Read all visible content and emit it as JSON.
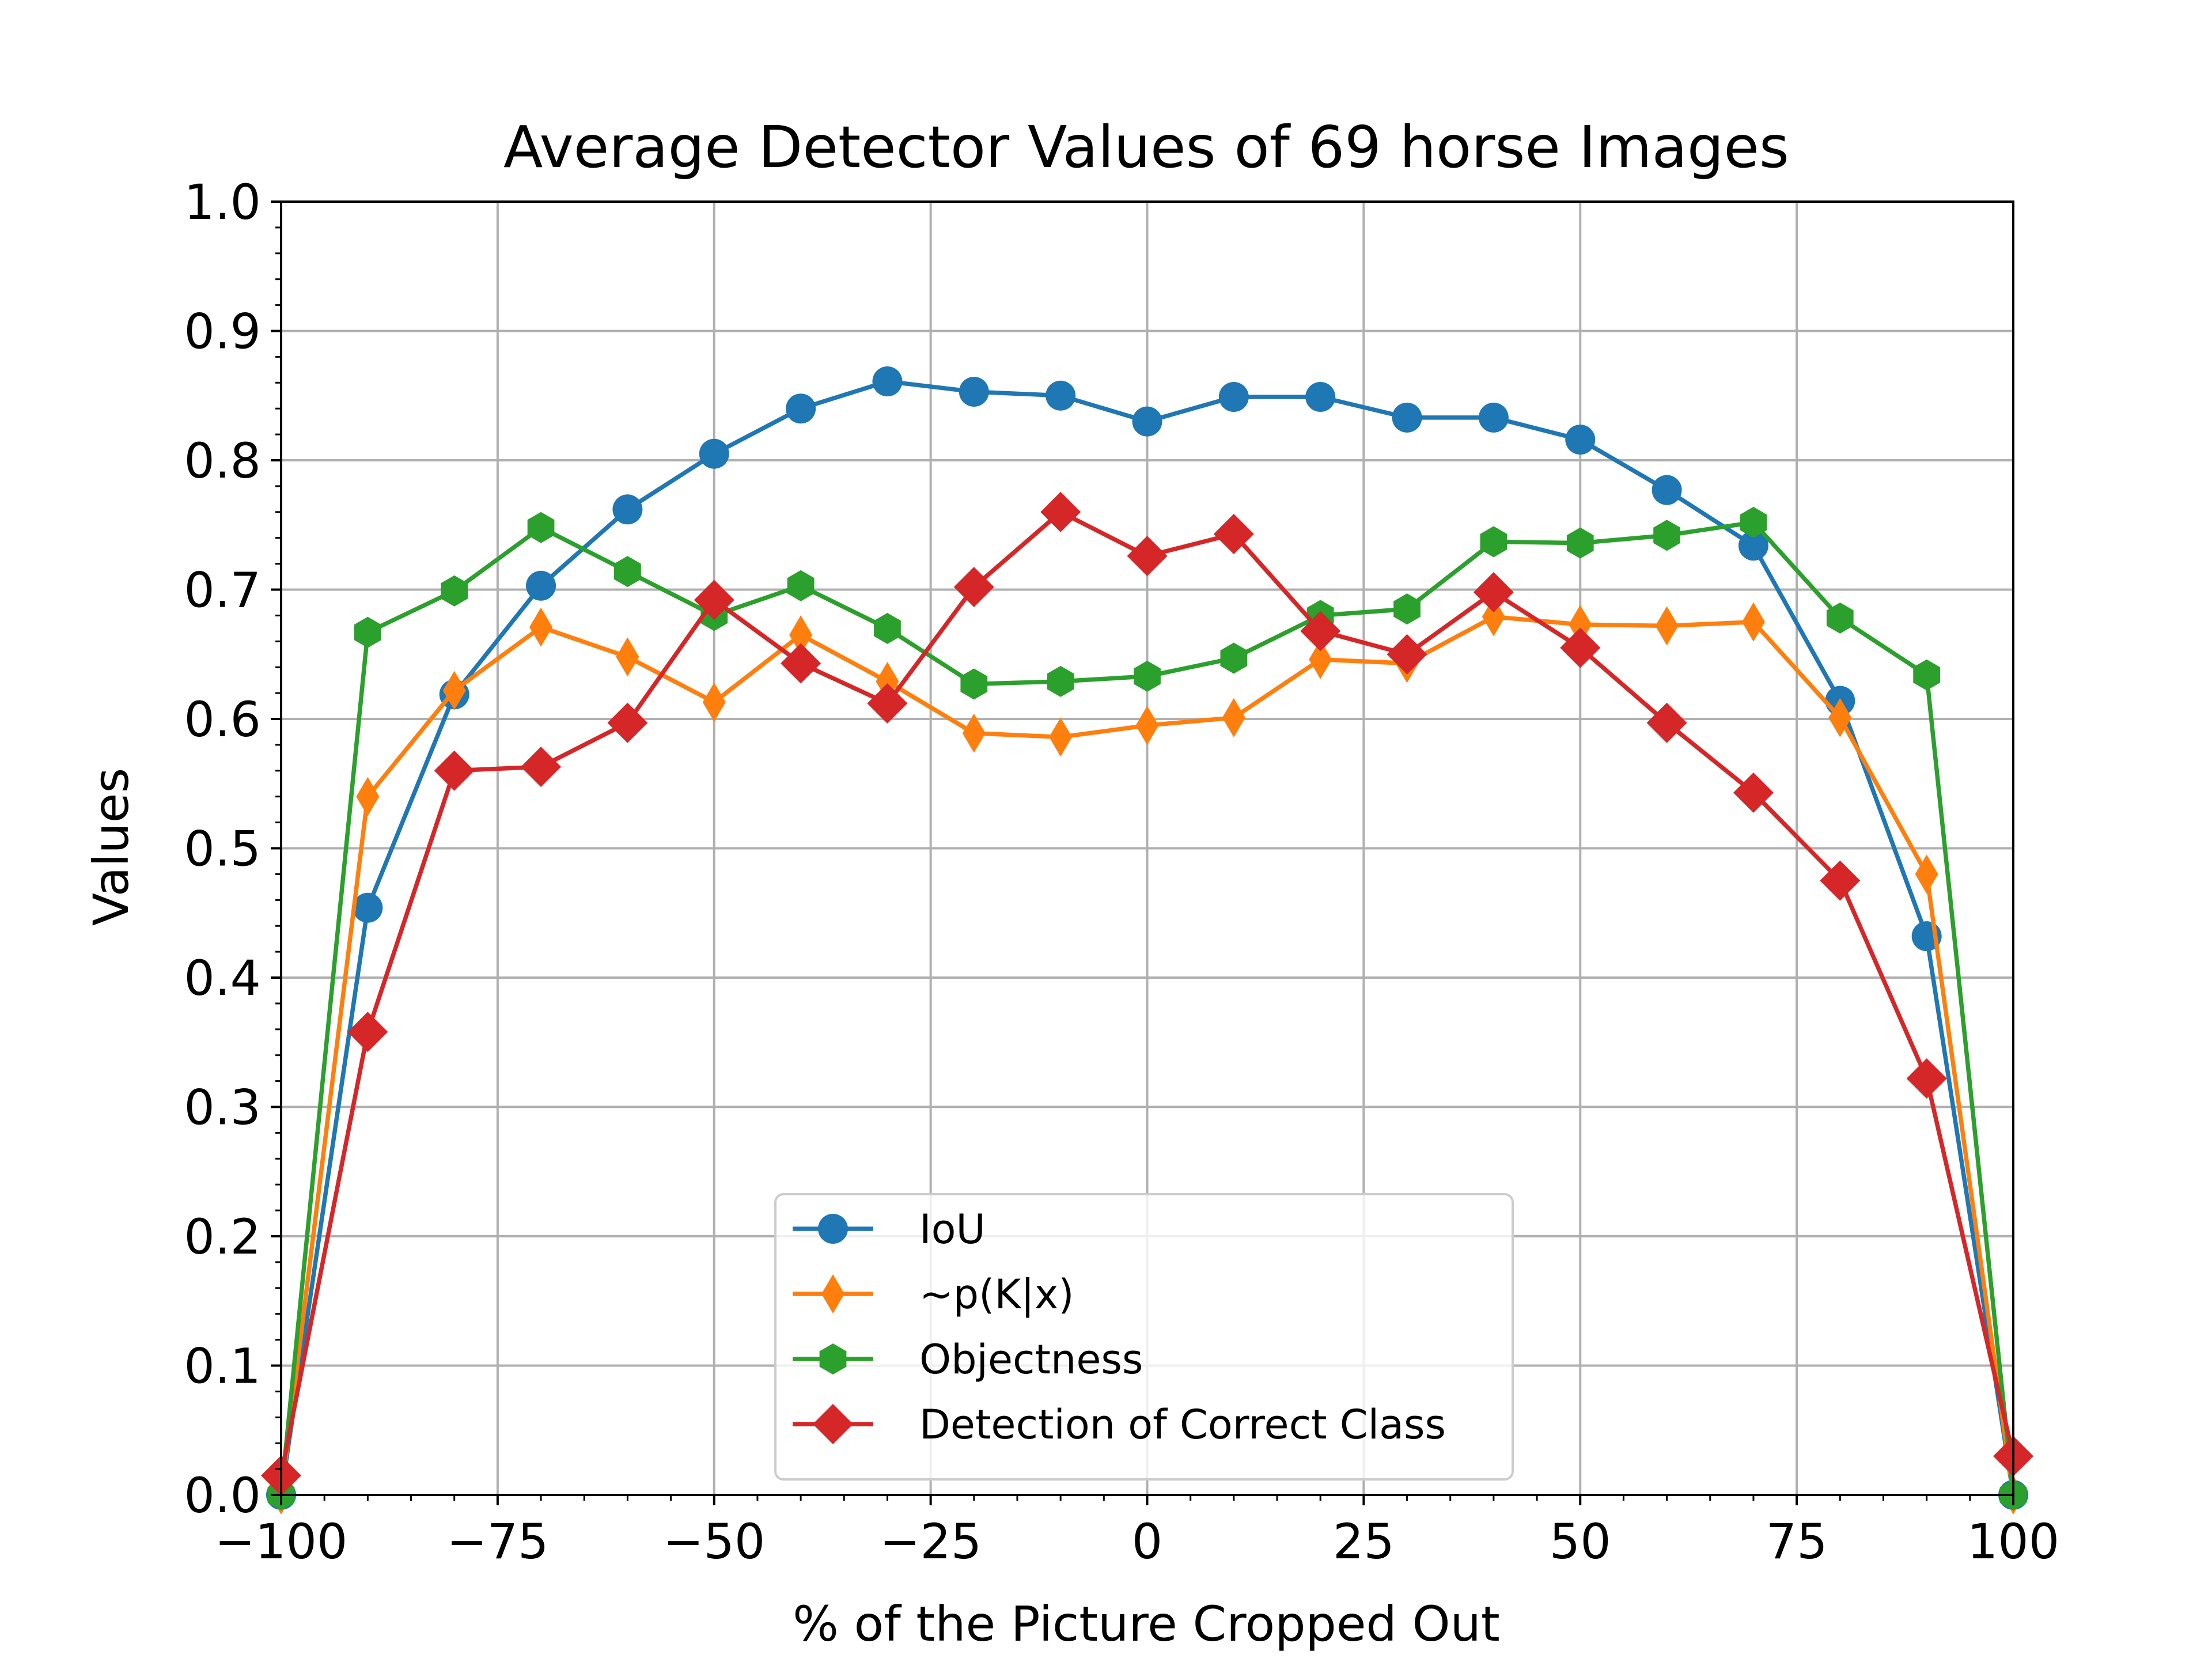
{
  "chart_data": {
    "type": "line",
    "title": "Average Detector Values of 69 horse Images",
    "xlabel": "% of the Picture Cropped Out",
    "ylabel": "Values",
    "xlim": [
      -100,
      100
    ],
    "ylim": [
      0,
      1
    ],
    "grid": true,
    "legend_position": "bottom-center",
    "x_ticks": [
      -100,
      -75,
      -50,
      -25,
      0,
      25,
      50,
      75,
      100
    ],
    "x_tick_labels": [
      "−100",
      "−75",
      "−50",
      "−25",
      "0",
      "25",
      "50",
      "75",
      "100"
    ],
    "y_ticks": [
      0,
      0.1,
      0.2,
      0.3,
      0.4,
      0.5,
      0.6,
      0.7,
      0.8,
      0.9,
      1.0
    ],
    "y_tick_labels": [
      "0.0",
      "0.1",
      "0.2",
      "0.3",
      "0.4",
      "0.5",
      "0.6",
      "0.7",
      "0.8",
      "0.9",
      "1.0"
    ],
    "x": [
      -100,
      -90,
      -80,
      -70,
      -60,
      -50,
      -40,
      -30,
      -20,
      -10,
      0,
      10,
      20,
      30,
      40,
      50,
      60,
      70,
      80,
      90,
      100
    ],
    "series": [
      {
        "name": "IoU",
        "color": "#1f77b4",
        "marker": "circle",
        "values": [
          0.0,
          0.454,
          0.619,
          0.703,
          0.762,
          0.805,
          0.84,
          0.861,
          0.853,
          0.85,
          0.83,
          0.849,
          0.849,
          0.833,
          0.833,
          0.816,
          0.777,
          0.734,
          0.614,
          0.432,
          0.0
        ]
      },
      {
        "name": "~p(K|x)",
        "color": "#ff7f0e",
        "marker": "thin-diamond",
        "values": [
          0.0,
          0.54,
          0.622,
          0.671,
          0.648,
          0.613,
          0.665,
          0.629,
          0.589,
          0.586,
          0.595,
          0.601,
          0.646,
          0.643,
          0.679,
          0.673,
          0.672,
          0.675,
          0.601,
          0.48,
          0.0
        ]
      },
      {
        "name": "Objectness",
        "color": "#2ca02c",
        "marker": "hexagon",
        "values": [
          0.0,
          0.667,
          0.699,
          0.748,
          0.714,
          0.68,
          0.703,
          0.67,
          0.627,
          0.629,
          0.633,
          0.647,
          0.68,
          0.685,
          0.737,
          0.736,
          0.742,
          0.752,
          0.678,
          0.634,
          0.0
        ]
      },
      {
        "name": "Detection of Correct Class",
        "color": "#d62728",
        "marker": "diamond",
        "values": [
          0.015,
          0.358,
          0.56,
          0.563,
          0.597,
          0.692,
          0.643,
          0.612,
          0.702,
          0.76,
          0.726,
          0.743,
          0.668,
          0.65,
          0.698,
          0.655,
          0.597,
          0.543,
          0.475,
          0.322,
          0.03
        ]
      }
    ]
  }
}
